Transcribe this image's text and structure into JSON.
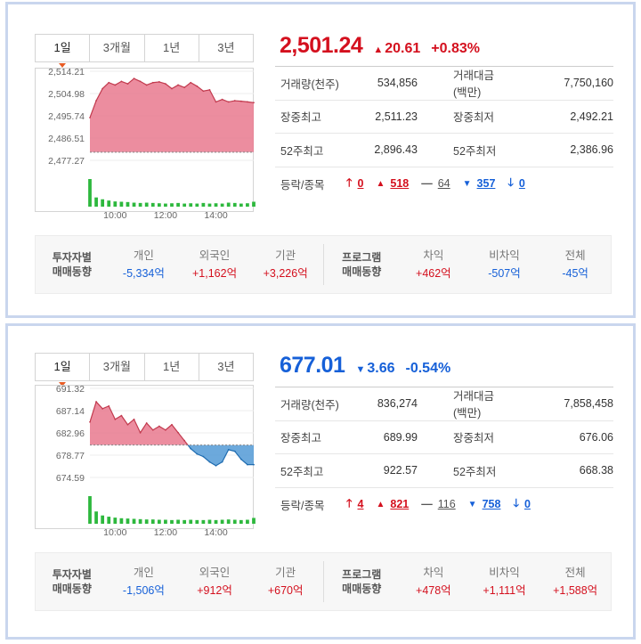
{
  "labels": {
    "volume": "거래량(천주)",
    "value": "거래대금(백만)",
    "high": "장중최고",
    "low": "장중최저",
    "high52": "52주최고",
    "low52": "52주최저",
    "breadth": "등락/종목",
    "investor_head_1": "투자자별",
    "investor_head_2": "매매동향",
    "retail": "개인",
    "foreign": "외국인",
    "institution": "기관",
    "program_head_1": "프로그램",
    "program_head_2": "매매동향",
    "arbitrage": "차익",
    "non_arbitrage": "비차익",
    "total": "전체"
  },
  "colors": {
    "up": "#d4101e",
    "down": "#1660d8",
    "up_fill": "#e9798e",
    "down_fill": "#5ca0d8",
    "volume": "#2db83d"
  },
  "panels": [
    {
      "tabs": [
        "1일",
        "3개월",
        "1년",
        "3년"
      ],
      "active_tab": 0,
      "index_value": "2,501.24",
      "direction": "up",
      "change": "20.61",
      "change_arrow": "▲",
      "rate": "+0.83%",
      "volume": "534,856",
      "trade_value": "7,750,160",
      "high": "2,511.23",
      "low": "2,492.21",
      "high52": "2,896.43",
      "low52": "2,386.96",
      "breadth": {
        "upper_limit": "0",
        "rise": "518",
        "flat": "64",
        "fall": "357",
        "lower_limit": "0"
      },
      "investors": {
        "retail": "-5,334억",
        "foreign": "+1,162억",
        "institution": "+3,226억"
      },
      "program": {
        "arbitrage": "+462억",
        "non_arbitrage": "-507억",
        "total": "-45억"
      },
      "chart_data": {
        "type": "area",
        "y_ticks": [
          "2,514.21",
          "2,504.98",
          "2,495.74",
          "2,486.51",
          "2,477.27"
        ],
        "ylim": [
          2477.27,
          2514.21
        ],
        "baseline": 2480.63,
        "x_ticks": [
          "10:00",
          "12:00",
          "14:00"
        ],
        "x_hours": [
          9.0,
          9.25,
          9.5,
          9.75,
          10.0,
          10.25,
          10.5,
          10.75,
          11.0,
          11.25,
          11.5,
          11.75,
          12.0,
          12.25,
          12.5,
          12.75,
          13.0,
          13.25,
          13.5,
          13.75,
          14.0,
          14.25,
          14.5,
          14.75,
          15.0,
          15.25,
          15.5
        ],
        "values": [
          2495.0,
          2502.0,
          2507.0,
          2509.5,
          2508.5,
          2510.0,
          2509.0,
          2511.2,
          2510.0,
          2508.5,
          2509.5,
          2509.8,
          2509.0,
          2507.0,
          2508.5,
          2507.5,
          2509.5,
          2508.0,
          2506.0,
          2506.5,
          2501.5,
          2502.5,
          2501.5,
          2502.0,
          2501.8,
          2501.5,
          2501.2
        ],
        "volume": [
          9,
          3,
          2.4,
          2.0,
          1.7,
          1.6,
          1.5,
          1.3,
          1.2,
          1.3,
          1.2,
          1.1,
          1.0,
          1.1,
          1.2,
          1.0,
          1.1,
          1.0,
          1.2,
          1.0,
          1.1,
          1.0,
          1.3,
          1.2,
          1.0,
          1.1,
          1.6
        ]
      }
    },
    {
      "tabs": [
        "1일",
        "3개월",
        "1년",
        "3년"
      ],
      "active_tab": 0,
      "index_value": "677.01",
      "direction": "down",
      "change": "3.66",
      "change_arrow": "▼",
      "rate": "-0.54%",
      "volume": "836,274",
      "trade_value": "7,858,458",
      "high": "689.99",
      "low": "676.06",
      "high52": "922.57",
      "low52": "668.38",
      "breadth": {
        "upper_limit": "4",
        "rise": "821",
        "flat": "116",
        "fall": "758",
        "lower_limit": "0"
      },
      "investors": {
        "retail": "-1,506억",
        "foreign": "+912억",
        "institution": "+670억"
      },
      "program": {
        "arbitrage": "+478억",
        "non_arbitrage": "+1,111억",
        "total": "+1,588억"
      },
      "chart_data": {
        "type": "area",
        "y_ticks": [
          "691.32",
          "687.14",
          "682.96",
          "678.77",
          "674.59"
        ],
        "ylim": [
          674.59,
          691.32
        ],
        "baseline": 680.67,
        "x_ticks": [
          "10:00",
          "12:00",
          "14:00"
        ],
        "x_hours": [
          9.0,
          9.25,
          9.5,
          9.75,
          10.0,
          10.25,
          10.5,
          10.75,
          11.0,
          11.25,
          11.5,
          11.75,
          12.0,
          12.25,
          12.5,
          12.75,
          13.0,
          13.25,
          13.5,
          13.75,
          14.0,
          14.25,
          14.5,
          14.75,
          15.0,
          15.25,
          15.5
        ],
        "values": [
          685.0,
          688.8,
          687.5,
          688.0,
          685.5,
          686.2,
          684.5,
          685.5,
          683.0,
          684.8,
          683.5,
          684.2,
          683.5,
          684.5,
          683.0,
          681.5,
          680.0,
          679.0,
          678.5,
          677.5,
          676.8,
          677.5,
          679.8,
          679.5,
          678.0,
          677.0,
          677.0
        ],
        "volume": [
          9,
          4,
          2.7,
          2.3,
          2.0,
          1.8,
          1.7,
          1.6,
          1.5,
          1.4,
          1.4,
          1.3,
          1.3,
          1.2,
          1.3,
          1.2,
          1.3,
          1.2,
          1.2,
          1.3,
          1.2,
          1.3,
          1.4,
          1.3,
          1.2,
          1.3,
          1.9
        ]
      }
    }
  ]
}
